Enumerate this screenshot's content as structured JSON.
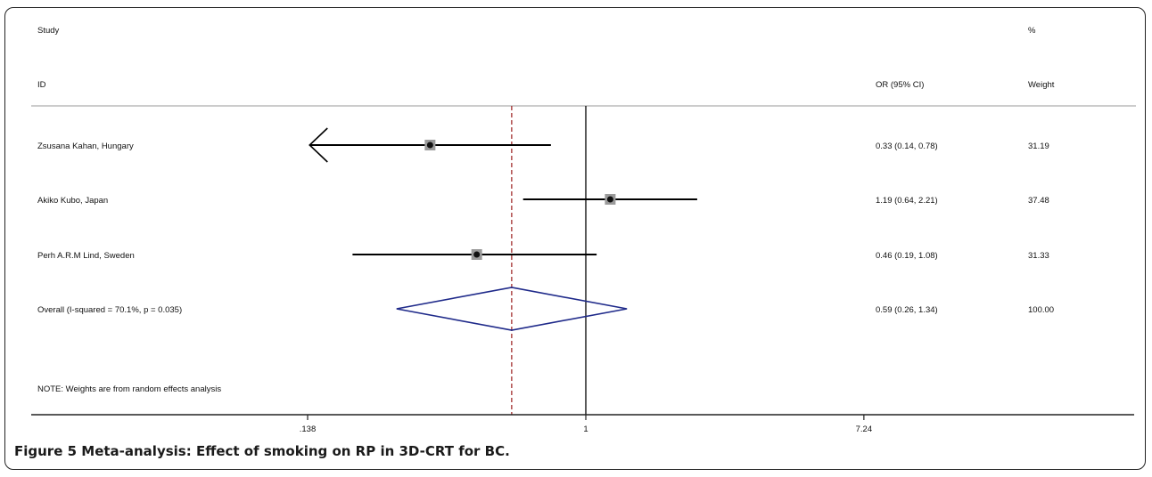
{
  "chart_data": {
    "type": "forest",
    "header": {
      "study_line1": "Study",
      "study_line2": "ID",
      "or_header": "OR (95% CI)",
      "weight_line1": "%",
      "weight_line2": "Weight"
    },
    "x_scale": "log",
    "null_line": 1,
    "overall_line": 0.59,
    "xticks": [
      {
        "value": 0.138,
        "label": ".138"
      },
      {
        "value": 1,
        "label": "1"
      },
      {
        "value": 7.24,
        "label": "7.24"
      }
    ],
    "studies": [
      {
        "label": "Zsusana Kahan, Hungary",
        "or": 0.33,
        "lower": 0.14,
        "upper": 0.78,
        "lower_truncated": true,
        "ci_text": "0.33 (0.14, 0.78)",
        "weight": "31.19"
      },
      {
        "label": "Akiko Kubo, Japan",
        "or": 1.19,
        "lower": 0.64,
        "upper": 2.21,
        "lower_truncated": false,
        "ci_text": "1.19 (0.64, 2.21)",
        "weight": "37.48"
      },
      {
        "label": "Perh A.R.M Lind, Sweden",
        "or": 0.46,
        "lower": 0.19,
        "upper": 1.08,
        "lower_truncated": false,
        "ci_text": "0.46 (0.19, 1.08)",
        "weight": "31.33"
      }
    ],
    "overall": {
      "label": "Overall  (I-squared = 70.1%, p = 0.035)",
      "or": 0.59,
      "lower": 0.26,
      "upper": 1.34,
      "ci_text": "0.59 (0.26, 1.34)",
      "weight": "100.00"
    },
    "note": "NOTE: Weights are from random effects analysis",
    "colors": {
      "diamond": "#1f2a8a",
      "overall_line": "#9b1c1c",
      "lines": "#000000",
      "box": "#9a9a9a"
    }
  },
  "caption": {
    "figure_label": "Figure 5",
    "text": "Meta-analysis: Effect of smoking on RP in 3D-CRT for BC."
  }
}
